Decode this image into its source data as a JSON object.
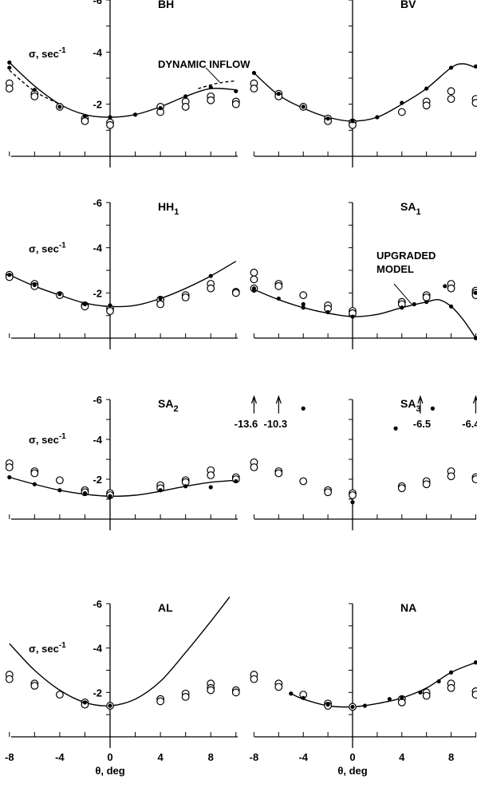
{
  "page_title": "",
  "chart_data": [
    {
      "type": "scatter",
      "title": "BH",
      "sub": "",
      "xlim": [
        -8,
        10
      ],
      "ylim": [
        -6,
        0
      ],
      "yticks": [
        -6,
        -4,
        -2
      ],
      "ylabel": "σ, sec⁻¹",
      "xlabel": "",
      "xtick_labels": false,
      "curve": [
        [
          -8,
          -3.6
        ],
        [
          -6,
          -2.7
        ],
        [
          -4,
          -2.0
        ],
        [
          -2,
          -1.6
        ],
        [
          0,
          -1.5
        ],
        [
          2,
          -1.6
        ],
        [
          4,
          -1.9
        ],
        [
          6,
          -2.3
        ],
        [
          8,
          -2.6
        ],
        [
          10,
          -2.55
        ]
      ],
      "dashed": [
        [
          [
            -8,
            -3.3
          ],
          [
            -6,
            -2.5
          ],
          [
            -4,
            -2.0
          ]
        ],
        [
          [
            7,
            -2.6
          ],
          [
            8.5,
            -2.8
          ],
          [
            10,
            -2.9
          ]
        ]
      ],
      "dots": [
        [
          -8,
          -3.6
        ],
        [
          -8,
          -3.4
        ],
        [
          -6,
          -2.55
        ],
        [
          -4,
          -1.9
        ],
        [
          -2,
          -1.55
        ],
        [
          0,
          -1.5
        ],
        [
          2,
          -1.6
        ],
        [
          4,
          -1.85
        ],
        [
          6,
          -2.3
        ],
        [
          8,
          -2.65
        ],
        [
          10,
          -2.5
        ]
      ],
      "circles": [
        [
          -8,
          -2.8
        ],
        [
          -8,
          -2.6
        ],
        [
          -6,
          -2.4
        ],
        [
          -6,
          -2.3
        ],
        [
          -4,
          -1.9
        ],
        [
          -2,
          -1.45
        ],
        [
          -2,
          -1.35
        ],
        [
          0,
          -1.3
        ],
        [
          0,
          -1.2
        ],
        [
          4,
          -1.9
        ],
        [
          4,
          -1.7
        ],
        [
          6,
          -2.1
        ],
        [
          6,
          -1.9
        ],
        [
          8,
          -2.3
        ],
        [
          8,
          -2.15
        ],
        [
          10,
          -2.1
        ],
        [
          10,
          -2.0
        ]
      ],
      "annotations": [
        "DYNAMIC INFLOW"
      ]
    },
    {
      "type": "scatter",
      "title": "BV",
      "sub": "",
      "xlim": [
        -8,
        10
      ],
      "ylim": [
        -6,
        0
      ],
      "yticks": [],
      "ylabel": "",
      "xlabel": "",
      "xtick_labels": false,
      "curve": [
        [
          -8,
          -3.2
        ],
        [
          -6,
          -2.35
        ],
        [
          -4,
          -1.85
        ],
        [
          -2,
          -1.5
        ],
        [
          0,
          -1.35
        ],
        [
          2,
          -1.5
        ],
        [
          4,
          -2.0
        ],
        [
          6,
          -2.6
        ],
        [
          8,
          -3.4
        ],
        [
          9,
          -3.55
        ],
        [
          10,
          -3.4
        ]
      ],
      "dashed": [],
      "dots": [
        [
          -8,
          -3.2
        ],
        [
          -6,
          -2.4
        ],
        [
          -4,
          -1.9
        ],
        [
          -2,
          -1.45
        ],
        [
          0,
          -1.35
        ],
        [
          2,
          -1.5
        ],
        [
          4,
          -2.05
        ],
        [
          6,
          -2.6
        ],
        [
          8,
          -3.4
        ],
        [
          10,
          -3.45
        ]
      ],
      "circles": [
        [
          -8,
          -2.8
        ],
        [
          -8,
          -2.6
        ],
        [
          -6,
          -2.4
        ],
        [
          -6,
          -2.3
        ],
        [
          -4,
          -1.9
        ],
        [
          -2,
          -1.45
        ],
        [
          -2,
          -1.35
        ],
        [
          0,
          -1.3
        ],
        [
          0,
          -1.2
        ],
        [
          4,
          -1.7
        ],
        [
          6,
          -2.1
        ],
        [
          6,
          -1.95
        ],
        [
          8,
          -2.5
        ],
        [
          8,
          -2.2
        ],
        [
          10,
          -2.2
        ],
        [
          10,
          -2.05
        ]
      ],
      "annotations": []
    },
    {
      "type": "scatter",
      "title": "HH",
      "sub": "1",
      "xlim": [
        -8,
        10
      ],
      "ylim": [
        -6,
        0
      ],
      "yticks": [
        -6,
        -4,
        -2
      ],
      "ylabel": "σ, sec⁻¹",
      "xlabel": "",
      "xtick_labels": false,
      "curve": [
        [
          -8,
          -2.8
        ],
        [
          -6,
          -2.3
        ],
        [
          -4,
          -1.9
        ],
        [
          -2,
          -1.55
        ],
        [
          0,
          -1.4
        ],
        [
          2,
          -1.45
        ],
        [
          4,
          -1.75
        ],
        [
          6,
          -2.2
        ],
        [
          8,
          -2.75
        ],
        [
          10,
          -3.4
        ]
      ],
      "dashed": [],
      "dots": [
        [
          -8,
          -2.8
        ],
        [
          -6,
          -2.35
        ],
        [
          -4,
          -1.95
        ],
        [
          -2,
          -1.5
        ],
        [
          0,
          -1.45
        ],
        [
          4,
          -1.75
        ],
        [
          8,
          -2.75
        ]
      ],
      "circles": [
        [
          -8,
          -2.8
        ],
        [
          -8,
          -2.7
        ],
        [
          -6,
          -2.4
        ],
        [
          -6,
          -2.3
        ],
        [
          -4,
          -1.9
        ],
        [
          -2,
          -1.45
        ],
        [
          -2,
          -1.4
        ],
        [
          0,
          -1.3
        ],
        [
          0,
          -1.2
        ],
        [
          4,
          -1.7
        ],
        [
          4,
          -1.5
        ],
        [
          6,
          -1.9
        ],
        [
          6,
          -1.8
        ],
        [
          8,
          -2.4
        ],
        [
          8,
          -2.2
        ],
        [
          10,
          -2.05
        ],
        [
          10,
          -2.0
        ]
      ],
      "annotations": []
    },
    {
      "type": "scatter",
      "title": "SA",
      "sub": "1",
      "xlim": [
        -8,
        10
      ],
      "ylim": [
        -6,
        0
      ],
      "yticks": [],
      "ylabel": "",
      "xlabel": "",
      "xtick_labels": false,
      "curve": [
        [
          -8,
          -2.15
        ],
        [
          -6,
          -1.7
        ],
        [
          -4,
          -1.35
        ],
        [
          -2,
          -1.1
        ],
        [
          0,
          -0.95
        ],
        [
          2,
          -1.05
        ],
        [
          4,
          -1.35
        ],
        [
          6,
          -1.6
        ],
        [
          7,
          -1.7
        ],
        [
          8,
          -1.4
        ],
        [
          9,
          -0.8
        ],
        [
          10,
          0.0
        ]
      ],
      "dashed": [],
      "dots": [
        [
          -8,
          -2.2
        ],
        [
          -8,
          -2.1
        ],
        [
          -6,
          -1.75
        ],
        [
          -4,
          -1.5
        ],
        [
          -4,
          -1.35
        ],
        [
          -2,
          -1.15
        ],
        [
          0,
          -0.95
        ],
        [
          4,
          -1.35
        ],
        [
          5,
          -1.5
        ],
        [
          6,
          -1.6
        ],
        [
          7.5,
          -2.3
        ],
        [
          8,
          -1.4
        ],
        [
          10,
          -2.0
        ],
        [
          10,
          0.0
        ]
      ],
      "circles": [
        [
          -8,
          -2.9
        ],
        [
          -8,
          -2.6
        ],
        [
          -8,
          -2.2
        ],
        [
          -6,
          -2.4
        ],
        [
          -6,
          -2.3
        ],
        [
          -4,
          -1.9
        ],
        [
          -2,
          -1.45
        ],
        [
          -2,
          -1.3
        ],
        [
          0,
          -1.2
        ],
        [
          0,
          -1.1
        ],
        [
          4,
          -1.6
        ],
        [
          4,
          -1.5
        ],
        [
          6,
          -1.9
        ],
        [
          6,
          -1.8
        ],
        [
          8,
          -2.4
        ],
        [
          8,
          -2.2
        ],
        [
          10,
          -2.1
        ],
        [
          10,
          -2.0
        ],
        [
          10,
          -1.9
        ]
      ],
      "annotations": [
        "UPGRADED",
        "MODEL"
      ]
    },
    {
      "type": "scatter",
      "title": "SA",
      "sub": "2",
      "xlim": [
        -8,
        10
      ],
      "ylim": [
        -6,
        0
      ],
      "yticks": [
        -6,
        -4,
        -2
      ],
      "ylabel": "σ, sec⁻¹",
      "xlabel": "",
      "xtick_labels": false,
      "curve": [
        [
          -8,
          -2.1
        ],
        [
          -6,
          -1.75
        ],
        [
          -4,
          -1.45
        ],
        [
          -2,
          -1.25
        ],
        [
          0,
          -1.15
        ],
        [
          2,
          -1.2
        ],
        [
          4,
          -1.4
        ],
        [
          6,
          -1.65
        ],
        [
          8,
          -1.85
        ],
        [
          10,
          -1.95
        ]
      ],
      "dashed": [],
      "dots": [
        [
          -8,
          -2.1
        ],
        [
          -6,
          -1.75
        ],
        [
          -4,
          -1.45
        ],
        [
          -2,
          -1.3
        ],
        [
          0,
          -1.15
        ],
        [
          4,
          -1.45
        ],
        [
          6,
          -1.65
        ],
        [
          8,
          -1.6
        ],
        [
          10,
          -1.9
        ]
      ],
      "circles": [
        [
          -8,
          -2.8
        ],
        [
          -8,
          -2.6
        ],
        [
          -6,
          -2.4
        ],
        [
          -6,
          -2.3
        ],
        [
          -4,
          -1.95
        ],
        [
          -2,
          -1.45
        ],
        [
          -2,
          -1.35
        ],
        [
          0,
          -1.3
        ],
        [
          0,
          -1.2
        ],
        [
          4,
          -1.7
        ],
        [
          4,
          -1.55
        ],
        [
          6,
          -1.95
        ],
        [
          6,
          -1.85
        ],
        [
          8,
          -2.45
        ],
        [
          8,
          -2.2
        ],
        [
          10,
          -2.1
        ],
        [
          10,
          -2.0
        ]
      ],
      "annotations": []
    },
    {
      "type": "scatter",
      "title": "SA",
      "sub": "3",
      "xlim": [
        -8,
        10
      ],
      "ylim": [
        -6,
        0
      ],
      "yticks": [],
      "ylabel": "",
      "xlabel": "",
      "xtick_labels": false,
      "curve": [],
      "dashed": [],
      "dots": [
        [
          -4,
          -5.55
        ],
        [
          3.5,
          -4.55
        ],
        [
          6.5,
          -5.55
        ],
        [
          0,
          -0.85
        ]
      ],
      "circles": [
        [
          -8,
          -2.85
        ],
        [
          -8,
          -2.6
        ],
        [
          -6,
          -2.4
        ],
        [
          -6,
          -2.3
        ],
        [
          -4,
          -1.9
        ],
        [
          -2,
          -1.45
        ],
        [
          -2,
          -1.35
        ],
        [
          0,
          -1.3
        ],
        [
          0,
          -1.2
        ],
        [
          4,
          -1.65
        ],
        [
          4,
          -1.55
        ],
        [
          6,
          -1.9
        ],
        [
          6,
          -1.75
        ],
        [
          8,
          -2.4
        ],
        [
          8,
          -2.15
        ],
        [
          10,
          -2.1
        ],
        [
          10,
          -2.0
        ]
      ],
      "offscale_x": [
        -8,
        -6,
        5.5,
        10
      ],
      "offscale_labels": [
        "-13.6",
        "-10.3",
        "-6.5",
        "-6.4"
      ],
      "annotations": []
    },
    {
      "type": "scatter",
      "title": "AL",
      "sub": "",
      "xlim": [
        -8,
        10
      ],
      "ylim": [
        -6,
        0
      ],
      "yticks": [
        -6,
        -4,
        -2
      ],
      "ylabel": "σ, sec⁻¹",
      "xlabel": "θ, deg",
      "xtick_labels": true,
      "xticks": [
        -8,
        -4,
        0,
        4,
        8
      ],
      "curve": [
        [
          -8,
          -4.2
        ],
        [
          -6,
          -3.0
        ],
        [
          -4,
          -2.1
        ],
        [
          -2,
          -1.55
        ],
        [
          0,
          -1.4
        ],
        [
          2,
          -1.7
        ],
        [
          4,
          -2.5
        ],
        [
          6,
          -3.8
        ],
        [
          8,
          -5.2
        ],
        [
          9.5,
          -6.3
        ]
      ],
      "dashed": [],
      "dots": [
        [
          -2,
          -1.55
        ],
        [
          0,
          -1.4
        ]
      ],
      "circles": [
        [
          -8,
          -2.8
        ],
        [
          -8,
          -2.6
        ],
        [
          -6,
          -2.4
        ],
        [
          -6,
          -2.3
        ],
        [
          -4,
          -1.9
        ],
        [
          -2,
          -1.55
        ],
        [
          -2,
          -1.45
        ],
        [
          0,
          -1.4
        ],
        [
          4,
          -1.7
        ],
        [
          4,
          -1.6
        ],
        [
          6,
          -1.95
        ],
        [
          6,
          -1.8
        ],
        [
          8,
          -2.4
        ],
        [
          8,
          -2.2
        ],
        [
          8,
          -2.1
        ],
        [
          10,
          -2.1
        ],
        [
          10,
          -2.0
        ]
      ],
      "annotations": []
    },
    {
      "type": "scatter",
      "title": "NA",
      "sub": "",
      "xlim": [
        -8,
        10
      ],
      "ylim": [
        -6,
        0
      ],
      "yticks": [],
      "ylabel": "",
      "xlabel": "θ, deg",
      "xtick_labels": true,
      "xticks": [
        -8,
        -4,
        0,
        4,
        8
      ],
      "curve": [
        [
          -5,
          -1.95
        ],
        [
          -4,
          -1.7
        ],
        [
          -2,
          -1.4
        ],
        [
          0,
          -1.35
        ],
        [
          2,
          -1.5
        ],
        [
          4,
          -1.75
        ],
        [
          6,
          -2.2
        ],
        [
          8,
          -2.9
        ],
        [
          10,
          -3.35
        ]
      ],
      "dashed": [],
      "dots": [
        [
          -5,
          -1.95
        ],
        [
          -4,
          -1.75
        ],
        [
          -2,
          -1.45
        ],
        [
          0,
          -1.35
        ],
        [
          1,
          -1.4
        ],
        [
          3,
          -1.7
        ],
        [
          4,
          -1.75
        ],
        [
          5.5,
          -2.0
        ],
        [
          7,
          -2.5
        ],
        [
          8,
          -2.9
        ],
        [
          10,
          -3.35
        ]
      ],
      "circles": [
        [
          -8,
          -2.8
        ],
        [
          -8,
          -2.6
        ],
        [
          -6,
          -2.4
        ],
        [
          -6,
          -2.25
        ],
        [
          -4,
          -1.9
        ],
        [
          -2,
          -1.5
        ],
        [
          -2,
          -1.4
        ],
        [
          0,
          -1.35
        ],
        [
          4,
          -1.7
        ],
        [
          4,
          -1.55
        ],
        [
          6,
          -2.0
        ],
        [
          6,
          -1.85
        ],
        [
          8,
          -2.4
        ],
        [
          8,
          -2.2
        ],
        [
          10,
          -2.05
        ],
        [
          10,
          -1.9
        ]
      ],
      "annotations": []
    }
  ]
}
